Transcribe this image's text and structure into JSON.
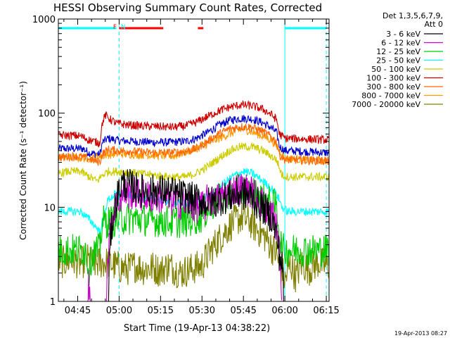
{
  "chart_data": {
    "type": "line",
    "title": "HESSI Observing Summary Count Rates, Corrected",
    "xlabel": "Start Time (19-Apr-13 04:38:22)",
    "ylabel": "Corrected Count Rate (s⁻¹ detector⁻¹)",
    "y_scale": "log",
    "ylim": [
      1,
      1000
    ],
    "xlim_minutes": [
      278,
      376
    ],
    "x_ticks": [
      {
        "label": "04:45",
        "m": 285
      },
      {
        "label": "05:00",
        "m": 300
      },
      {
        "label": "05:15",
        "m": 315
      },
      {
        "label": "05:30",
        "m": 330
      },
      {
        "label": "05:45",
        "m": 345
      },
      {
        "label": "06:00",
        "m": 360
      },
      {
        "label": "06:15",
        "m": 375
      }
    ],
    "y_ticks": [
      {
        "label": "1",
        "v": 1
      },
      {
        "label": "10",
        "v": 10
      },
      {
        "label": "100",
        "v": 100
      },
      {
        "label": "1000",
        "v": 1000
      }
    ],
    "legend": {
      "header": [
        "Det 1,3,5,6,7,9,",
        "Att 0"
      ],
      "position": "right"
    },
    "series": [
      {
        "name": "3 - 6 keV",
        "color": "#000000",
        "pts": [
          [
            296,
            0
          ],
          [
            297,
            5
          ],
          [
            299,
            12
          ],
          [
            301,
            18
          ],
          [
            304,
            17
          ],
          [
            308,
            15
          ],
          [
            312,
            15
          ],
          [
            316,
            15
          ],
          [
            320,
            14
          ],
          [
            324,
            13
          ],
          [
            328,
            12
          ],
          [
            332,
            11
          ],
          [
            336,
            12
          ],
          [
            340,
            13
          ],
          [
            344,
            14
          ],
          [
            348,
            13
          ],
          [
            350,
            11
          ],
          [
            352,
            10
          ],
          [
            355,
            8
          ],
          [
            357,
            5
          ],
          [
            358,
            3
          ],
          [
            359,
            2.5
          ],
          [
            360,
            0
          ]
        ]
      },
      {
        "name": "6 - 12 keV",
        "color": "#cc00cc",
        "pts": [
          [
            283,
            0
          ],
          [
            288,
            0
          ],
          [
            289,
            1.6
          ],
          [
            290,
            0
          ],
          [
            295,
            0
          ],
          [
            297,
            6
          ],
          [
            299,
            11
          ],
          [
            302,
            14
          ],
          [
            306,
            14
          ],
          [
            310,
            13
          ],
          [
            314,
            13
          ],
          [
            318,
            12
          ],
          [
            322,
            11
          ],
          [
            325,
            11
          ],
          [
            328,
            10
          ],
          [
            331,
            10
          ],
          [
            333,
            14
          ],
          [
            334,
            11
          ],
          [
            337,
            13
          ],
          [
            340,
            15
          ],
          [
            344,
            16
          ],
          [
            347,
            15
          ],
          [
            350,
            13
          ],
          [
            353,
            10
          ],
          [
            356,
            8
          ],
          [
            358,
            4
          ],
          [
            359,
            0
          ]
        ]
      },
      {
        "name": "12 - 25 keV",
        "color": "#00cc00",
        "pts": [
          [
            278,
            3.5
          ],
          [
            288,
            3.5
          ],
          [
            289,
            2
          ],
          [
            290,
            3
          ],
          [
            292,
            3.5
          ],
          [
            293,
            3.6
          ],
          [
            294,
            7
          ],
          [
            297,
            7
          ],
          [
            300,
            7.5
          ],
          [
            305,
            7.6
          ],
          [
            310,
            7.4
          ],
          [
            315,
            7.2
          ],
          [
            320,
            7
          ],
          [
            325,
            7.2
          ],
          [
            330,
            8
          ],
          [
            333,
            10
          ],
          [
            336,
            12
          ],
          [
            340,
            14
          ],
          [
            343,
            15
          ],
          [
            346,
            15
          ],
          [
            349,
            14
          ],
          [
            352,
            12
          ],
          [
            355,
            11
          ],
          [
            357,
            10
          ],
          [
            358,
            5
          ],
          [
            359,
            3.5
          ],
          [
            361,
            3.5
          ],
          [
            375,
            3.5
          ]
        ]
      },
      {
        "name": "25 - 50 keV",
        "color": "#00ffff",
        "pts": [
          [
            278,
            9
          ],
          [
            286,
            9
          ],
          [
            287,
            8.5
          ],
          [
            290,
            7
          ],
          [
            293,
            5.5
          ],
          [
            294,
            7
          ],
          [
            296,
            12
          ],
          [
            299,
            14
          ],
          [
            302,
            14
          ],
          [
            306,
            13
          ],
          [
            310,
            12.5
          ],
          [
            314,
            12
          ],
          [
            318,
            11.5
          ],
          [
            322,
            11
          ],
          [
            326,
            11
          ],
          [
            330,
            12
          ],
          [
            334,
            14
          ],
          [
            338,
            18
          ],
          [
            342,
            22
          ],
          [
            345,
            24
          ],
          [
            348,
            23
          ],
          [
            351,
            20
          ],
          [
            354,
            17
          ],
          [
            356,
            15
          ],
          [
            358,
            12
          ],
          [
            359,
            10
          ],
          [
            361,
            9
          ],
          [
            375,
            9
          ]
        ]
      },
      {
        "name": "50 - 100 keV",
        "color": "#cccc00",
        "pts": [
          [
            278,
            23
          ],
          [
            282,
            24
          ],
          [
            286,
            24
          ],
          [
            288,
            22
          ],
          [
            292,
            19
          ],
          [
            294,
            22
          ],
          [
            296,
            24
          ],
          [
            300,
            24
          ],
          [
            306,
            23
          ],
          [
            312,
            22
          ],
          [
            318,
            21
          ],
          [
            324,
            21
          ],
          [
            328,
            23
          ],
          [
            332,
            27
          ],
          [
            336,
            33
          ],
          [
            340,
            40
          ],
          [
            344,
            44
          ],
          [
            348,
            44
          ],
          [
            352,
            40
          ],
          [
            355,
            35
          ],
          [
            357,
            32
          ],
          [
            358,
            26
          ],
          [
            359,
            22
          ],
          [
            361,
            21
          ],
          [
            375,
            21
          ]
        ]
      },
      {
        "name": "100 - 300 keV",
        "color": "#cc0000",
        "pts": [
          [
            278,
            58
          ],
          [
            283,
            58
          ],
          [
            286,
            57
          ],
          [
            289,
            52
          ],
          [
            291,
            50
          ],
          [
            293,
            48
          ],
          [
            294,
            80
          ],
          [
            295,
            95
          ],
          [
            297,
            85
          ],
          [
            299,
            78
          ],
          [
            303,
            75
          ],
          [
            308,
            73
          ],
          [
            314,
            72
          ],
          [
            320,
            71
          ],
          [
            324,
            73
          ],
          [
            328,
            80
          ],
          [
            332,
            92
          ],
          [
            336,
            105
          ],
          [
            340,
            116
          ],
          [
            344,
            122
          ],
          [
            348,
            120
          ],
          [
            352,
            110
          ],
          [
            355,
            97
          ],
          [
            357,
            85
          ],
          [
            358,
            60
          ],
          [
            360,
            54
          ],
          [
            375,
            52
          ]
        ]
      },
      {
        "name": "300 - 800 keV",
        "color": "#ff6600",
        "pts": [
          [
            278,
            34
          ],
          [
            284,
            35
          ],
          [
            287,
            34
          ],
          [
            290,
            32
          ],
          [
            293,
            30
          ],
          [
            294,
            37
          ],
          [
            296,
            41
          ],
          [
            300,
            40
          ],
          [
            306,
            39
          ],
          [
            312,
            38
          ],
          [
            318,
            38
          ],
          [
            324,
            39
          ],
          [
            328,
            42
          ],
          [
            332,
            50
          ],
          [
            336,
            60
          ],
          [
            340,
            68
          ],
          [
            344,
            72
          ],
          [
            348,
            71
          ],
          [
            352,
            64
          ],
          [
            355,
            56
          ],
          [
            357,
            50
          ],
          [
            358,
            36
          ],
          [
            360,
            32
          ],
          [
            375,
            31
          ]
        ]
      },
      {
        "name": "800 - 7000 keV",
        "color": "#ff9900",
        "pts": [
          [
            278,
            34
          ],
          [
            290,
            33
          ],
          [
            295,
            36
          ],
          [
            300,
            37
          ],
          [
            310,
            36
          ],
          [
            320,
            35
          ],
          [
            330,
            44
          ],
          [
            345,
            68
          ],
          [
            355,
            52
          ],
          [
            360,
            33
          ],
          [
            375,
            31
          ]
        ]
      },
      {
        "name": "7000 - 20000 keV",
        "color": "#808000",
        "pts": [
          [
            278,
            2.7
          ],
          [
            280,
            2.6
          ],
          [
            283,
            2.8
          ],
          [
            286,
            2.5
          ],
          [
            288,
            2.8
          ],
          [
            291,
            2.5
          ],
          [
            294,
            2.6
          ],
          [
            297,
            2.5
          ],
          [
            300,
            2.3
          ],
          [
            303,
            2.2
          ],
          [
            306,
            2.4
          ],
          [
            309,
            2.2
          ],
          [
            312,
            2.3
          ],
          [
            315,
            2.1
          ],
          [
            318,
            2.4
          ],
          [
            322,
            2
          ],
          [
            326,
            2.2
          ],
          [
            330,
            2.4
          ],
          [
            333,
            3.4
          ],
          [
            336,
            4.5
          ],
          [
            339,
            5.8
          ],
          [
            341,
            6.8
          ],
          [
            344,
            7.8
          ],
          [
            347,
            7.2
          ],
          [
            350,
            5.8
          ],
          [
            353,
            4.8
          ],
          [
            355,
            3.8
          ],
          [
            357,
            3.2
          ],
          [
            358,
            2.4
          ],
          [
            359,
            2.2
          ],
          [
            360,
            1.6
          ],
          [
            362,
            2.5
          ],
          [
            364,
            1.8
          ],
          [
            366,
            2.5
          ],
          [
            369,
            2.2
          ],
          [
            372,
            2.6
          ],
          [
            375,
            2.4
          ]
        ]
      },
      {
        "name": "blue",
        "color": "#0000cc",
        "in_legend": false,
        "pts": [
          [
            278,
            42
          ],
          [
            284,
            42
          ],
          [
            287,
            42
          ],
          [
            289,
            38
          ],
          [
            291,
            37
          ],
          [
            293,
            36
          ],
          [
            294,
            49
          ],
          [
            296,
            54
          ],
          [
            300,
            51
          ],
          [
            306,
            50
          ],
          [
            312,
            49
          ],
          [
            318,
            49
          ],
          [
            324,
            50
          ],
          [
            328,
            54
          ],
          [
            332,
            62
          ],
          [
            336,
            74
          ],
          [
            340,
            84
          ],
          [
            344,
            88
          ],
          [
            348,
            87
          ],
          [
            352,
            79
          ],
          [
            355,
            70
          ],
          [
            357,
            62
          ],
          [
            358,
            44
          ],
          [
            360,
            40
          ],
          [
            375,
            38
          ]
        ]
      }
    ],
    "flag_markers": [
      {
        "label": "F",
        "color": "#ff0000",
        "m": 299
      },
      {
        "label": "N",
        "color": "#00ffff",
        "m": 302
      }
    ],
    "flag_bars": [
      {
        "color": "#00ffff",
        "from": 278,
        "to": 299
      },
      {
        "color": "#ff0000",
        "from": 300,
        "to": 316
      },
      {
        "color": "#ff0000",
        "from": 328.5,
        "to": 330.5
      },
      {
        "color": "#00ffff",
        "from": 360,
        "to": 375
      }
    ],
    "dashed_verticals": [
      {
        "color": "#00ffff",
        "m": 300
      },
      {
        "color": "#00ffff",
        "m": 375
      }
    ],
    "solid_verticals": [
      {
        "color": "#00ffff",
        "m": 360
      }
    ],
    "timestamp": "19-Apr-2013 08:27"
  }
}
